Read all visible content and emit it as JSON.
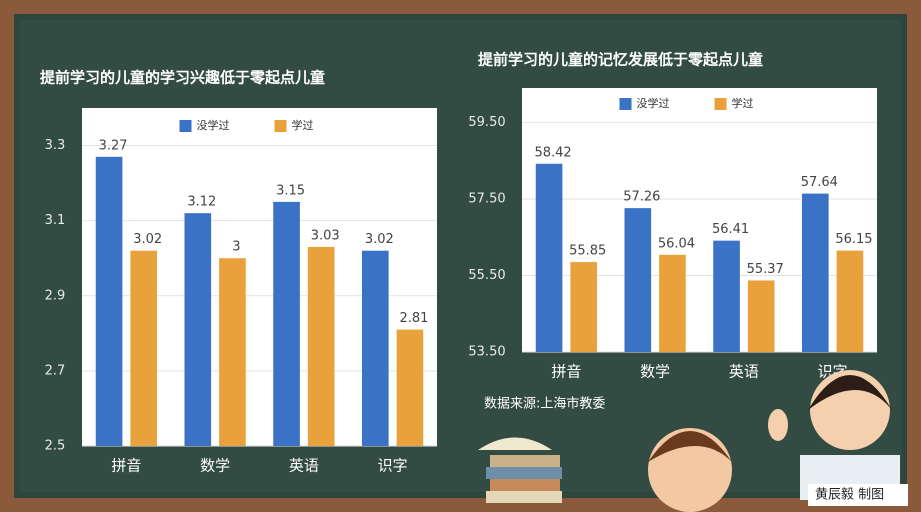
{
  "chart_data": [
    {
      "type": "bar",
      "title": "提前学习的儿童的学习兴趣低于零起点儿童",
      "categories": [
        "拼音",
        "数学",
        "英语",
        "识字"
      ],
      "series": [
        {
          "name": "没学过",
          "color": "#3a72c6",
          "values": [
            3.27,
            3.12,
            3.15,
            3.02
          ]
        },
        {
          "name": "学过",
          "color": "#e9a23b",
          "values": [
            3.02,
            3,
            3.03,
            2.81
          ]
        }
      ],
      "ylim": [
        2.5,
        3.4
      ],
      "yticks": [
        2.5,
        2.7,
        2.9,
        3.1,
        3.3
      ],
      "grid": true,
      "legend": "top"
    },
    {
      "type": "bar",
      "title": "提前学习的儿童的记忆发展低于零起点儿童",
      "categories": [
        "拼音",
        "数学",
        "英语",
        "识字"
      ],
      "series": [
        {
          "name": "没学过",
          "color": "#3a72c6",
          "values": [
            58.42,
            57.26,
            56.41,
            57.64
          ]
        },
        {
          "name": "学过",
          "color": "#e9a23b",
          "values": [
            55.85,
            56.04,
            55.37,
            56.15
          ]
        }
      ],
      "ylim": [
        53.5,
        60.4
      ],
      "yticks": [
        {
          "value": 53.5,
          "label": "53.50"
        },
        {
          "value": 55.5,
          "label": "55.50"
        },
        {
          "value": 57.5,
          "label": "57.50"
        },
        {
          "value": 59.5,
          "label": "59.50"
        }
      ],
      "grid": true,
      "legend": "top"
    }
  ],
  "source": "数据来源:上海市教委",
  "credit": "黄辰毅 制图"
}
